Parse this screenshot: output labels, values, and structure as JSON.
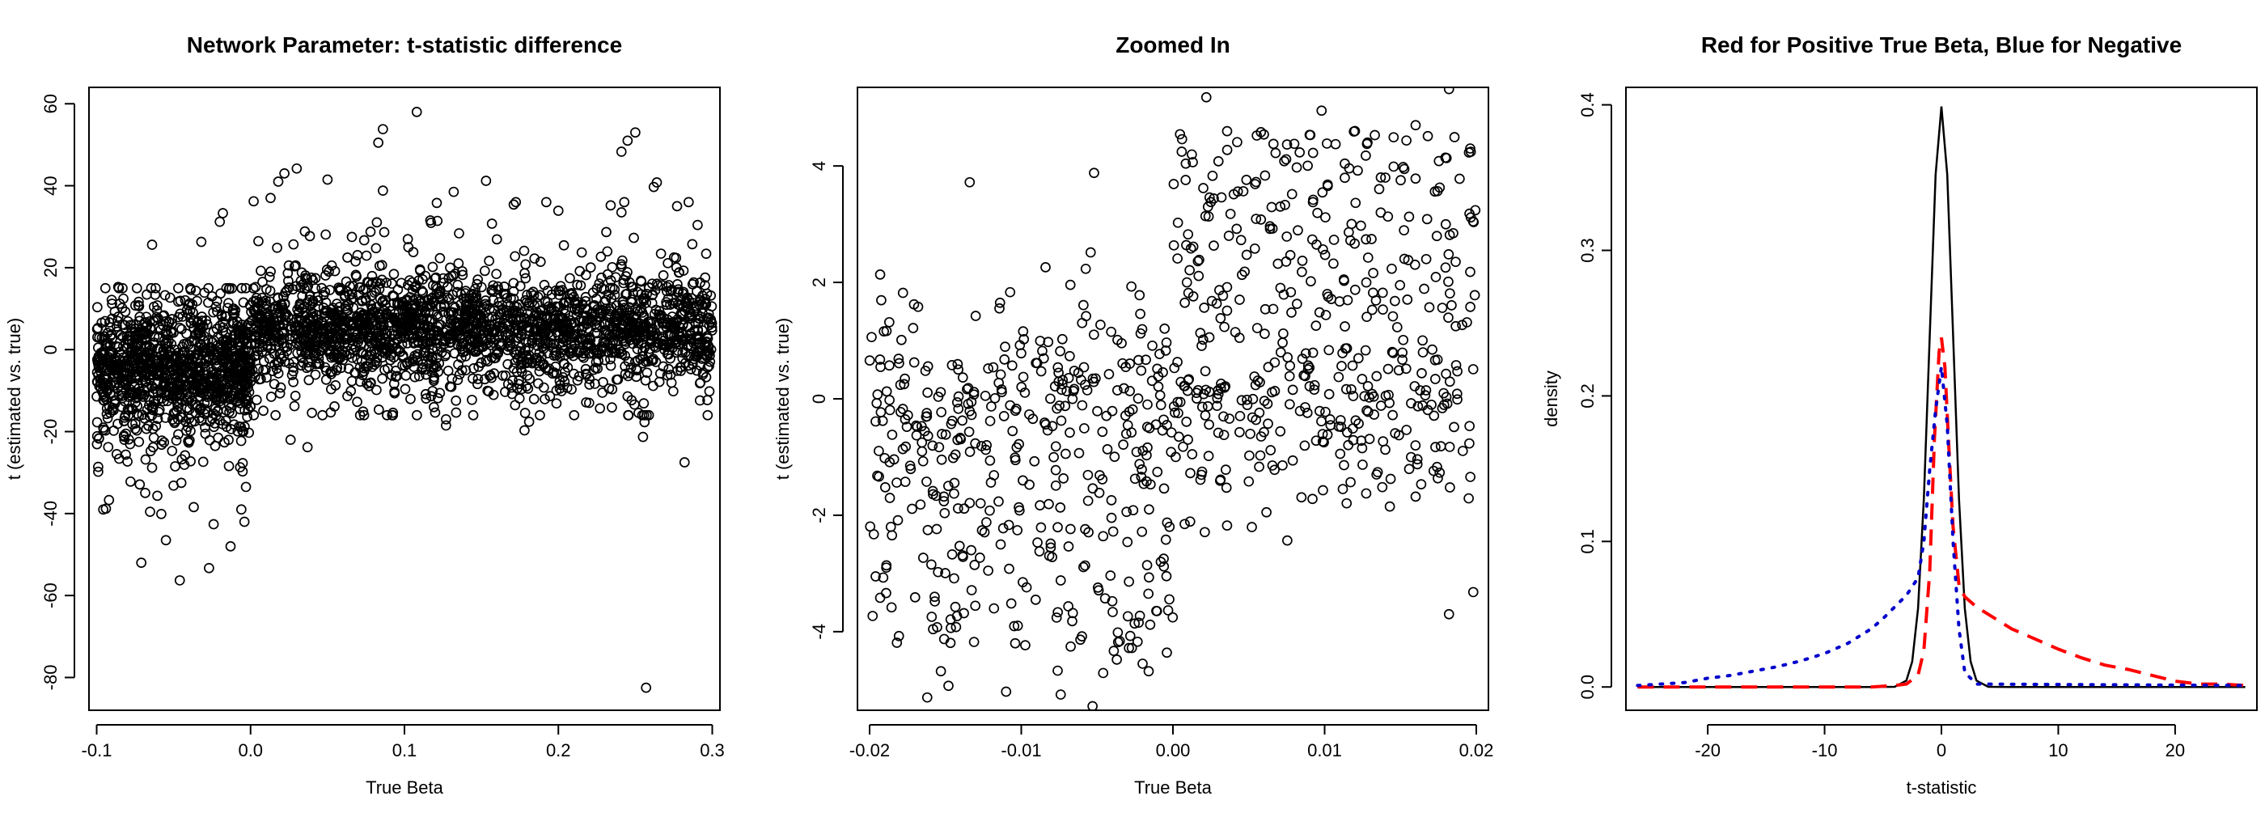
{
  "chart_data": [
    {
      "type": "scatter",
      "title": "Network Parameter: t-statistic difference",
      "xlabel": "True Beta",
      "ylabel": "t (estimated vs. true)",
      "xlim": [
        -0.105,
        0.305
      ],
      "ylim": [
        -88,
        64
      ],
      "xticks": [
        -0.1,
        0.0,
        0.1,
        0.2,
        0.3
      ],
      "xtick_labels": [
        "-0.1",
        "0.0",
        "0.1",
        "0.2",
        "0.3"
      ],
      "yticks": [
        -80,
        -60,
        -40,
        -20,
        0,
        20,
        40,
        60
      ],
      "ytick_labels": [
        "-80",
        "-60",
        "-40",
        "-20",
        "0",
        "20",
        "40",
        "60"
      ],
      "marker": "open-circle",
      "color": "#000000",
      "points": [
        [
          0.108,
          58.0
        ],
        [
          0.086,
          53.8
        ],
        [
          0.083,
          50.5
        ],
        [
          0.241,
          48.3
        ],
        [
          0.245,
          51.0
        ],
        [
          0.25,
          53.0
        ],
        [
          0.03,
          44.2
        ],
        [
          0.022,
          43.0
        ],
        [
          0.018,
          41.0
        ],
        [
          0.05,
          41.5
        ],
        [
          0.262,
          39.7
        ],
        [
          0.264,
          40.8
        ],
        [
          0.153,
          41.2
        ],
        [
          0.013,
          37.0
        ],
        [
          0.234,
          35.2
        ],
        [
          0.002,
          36.2
        ],
        [
          0.086,
          38.8
        ],
        [
          0.132,
          38.5
        ],
        [
          0.121,
          35.8
        ],
        [
          0.171,
          35.4
        ],
        [
          0.2,
          33.9
        ],
        [
          0.241,
          33.5
        ],
        [
          -0.018,
          33.3
        ],
        [
          -0.02,
          31.2
        ],
        [
          -0.032,
          26.3
        ],
        [
          -0.064,
          25.6
        ],
        [
          -0.086,
          15.3
        ],
        [
          -0.062,
          13.4
        ],
        [
          -0.03,
          13.9
        ],
        [
          -0.09,
          11.2
        ],
        [
          0.257,
          -82.5
        ],
        [
          0.255,
          -21.3
        ],
        [
          0.282,
          -27.5
        ],
        [
          0.256,
          -17.7
        ],
        [
          0.127,
          -18.5
        ],
        [
          0.127,
          -17.0
        ],
        [
          0.037,
          -23.8
        ],
        [
          0.026,
          -22.0
        ],
        [
          -0.046,
          -56.3
        ],
        [
          -0.071,
          -52.0
        ],
        [
          -0.027,
          -53.3
        ],
        [
          -0.013,
          -48.0
        ],
        [
          -0.024,
          -42.6
        ],
        [
          -0.006,
          -39.0
        ],
        [
          -0.004,
          -42.0
        ],
        [
          -0.055,
          -46.5
        ],
        [
          -0.058,
          -40.1
        ],
        [
          -0.099,
          -29.8
        ],
        [
          -0.099,
          -28.6
        ],
        [
          -0.078,
          -32.2
        ],
        [
          -0.072,
          -32.9
        ],
        [
          -0.045,
          -32.5
        ],
        [
          -0.094,
          -38.8
        ],
        [
          -0.092,
          -36.7
        ],
        [
          -0.08,
          -27.3
        ],
        [
          -0.064,
          -28.8
        ],
        [
          -0.043,
          -28.1
        ],
        [
          -0.082,
          -22.0
        ],
        [
          -0.087,
          -25.5
        ],
        [
          -0.003,
          -33.5
        ],
        [
          0.178,
          -19.7
        ],
        [
          0.181,
          -17.6
        ],
        [
          0.292,
          -12.4
        ],
        [
          0.292,
          -8.2
        ],
        [
          0.22,
          -13.0
        ],
        [
          0.245,
          -11.4
        ]
      ],
      "dense_band_neg": {
        "x_range": [
          -0.1,
          0.0
        ],
        "center": -5,
        "spread": 9
      },
      "dense_band_pos": {
        "x_range": [
          0.0,
          0.3
        ],
        "center": 5,
        "spread": 8
      }
    },
    {
      "type": "scatter",
      "title": "Zoomed In",
      "xlabel": "True Beta",
      "ylabel": "t (estimated vs. true)",
      "xlim": [
        -0.0208,
        0.0208
      ],
      "ylim": [
        -5.35,
        5.35
      ],
      "xticks": [
        -0.02,
        -0.01,
        0.0,
        0.01,
        0.02
      ],
      "xtick_labels": [
        "-0.02",
        "-0.01",
        "0.00",
        "0.01",
        "0.02"
      ],
      "yticks": [
        -4,
        -2,
        0,
        2,
        4
      ],
      "ytick_labels": [
        "-4",
        "-2",
        "0",
        "2",
        "4"
      ],
      "marker": "open-circle",
      "color": "#000000",
      "points": [
        [
          -0.0134,
          3.72
        ],
        [
          -0.0052,
          3.88
        ],
        [
          -0.0178,
          1.82
        ],
        [
          -0.0114,
          1.65
        ],
        [
          -0.0168,
          1.58
        ],
        [
          -0.0084,
          2.26
        ],
        [
          -0.0022,
          1.78
        ],
        [
          0.002,
          3.62
        ],
        [
          0.0025,
          3.38
        ],
        [
          0.003,
          4.08
        ],
        [
          0.0006,
          4.46
        ],
        [
          0.0022,
          5.18
        ],
        [
          0.0058,
          4.58
        ],
        [
          0.008,
          4.38
        ],
        [
          0.0098,
          4.95
        ],
        [
          0.012,
          4.6
        ],
        [
          0.014,
          3.8
        ],
        [
          0.016,
          4.7
        ],
        [
          0.0182,
          5.32
        ],
        [
          0.0196,
          4.3
        ],
        [
          0.0102,
          3.68
        ],
        [
          0.0137,
          3.2
        ],
        [
          0.0189,
          3.78
        ],
        [
          0.0058,
          3.08
        ],
        [
          0.0064,
          2.92
        ],
        [
          0.0003,
          2.41
        ],
        [
          0.0011,
          2.21
        ],
        [
          0.0054,
          2.58
        ],
        [
          0.0085,
          2.18
        ],
        [
          0.0117,
          2.72
        ],
        [
          0.0167,
          2.4
        ],
        [
          0.0196,
          2.18
        ],
        [
          0.0199,
          1.78
        ],
        [
          0.0042,
          2.92
        ],
        [
          0.0032,
          3.46
        ],
        [
          -0.011,
          -5.03
        ],
        [
          -0.0076,
          -4.67
        ],
        [
          -0.0074,
          -5.08
        ],
        [
          -0.0046,
          -4.71
        ],
        [
          -0.0037,
          -4.48
        ],
        [
          -0.0162,
          -5.13
        ],
        [
          -0.0148,
          -4.93
        ],
        [
          -0.0153,
          -4.68
        ],
        [
          -0.0182,
          -4.19
        ],
        [
          -0.0198,
          -3.73
        ],
        [
          -0.0053,
          -5.28
        ],
        [
          -0.0016,
          -4.68
        ],
        [
          -0.0143,
          -3.92
        ],
        [
          -0.0104,
          -4.2
        ],
        [
          -0.0118,
          -3.6
        ],
        [
          -0.0066,
          -3.68
        ],
        [
          -0.006,
          -4.08
        ],
        [
          -0.0039,
          -4.33
        ],
        [
          -0.0029,
          -4.28
        ],
        [
          -0.002,
          -4.55
        ],
        [
          -0.0004,
          -4.36
        ],
        [
          -0.0015,
          -3.88
        ],
        [
          -0.0099,
          -3.15
        ],
        [
          -0.0108,
          -2.92
        ],
        [
          -0.0074,
          -3.12
        ],
        [
          -0.0059,
          -2.89
        ],
        [
          -0.0049,
          -3.29
        ],
        [
          -0.0029,
          -3.14
        ],
        [
          -0.0006,
          -2.88
        ],
        [
          -0.0008,
          -2.8
        ],
        [
          -0.0157,
          -3.48
        ],
        [
          -0.017,
          -3.41
        ],
        [
          -0.0189,
          -2.9
        ],
        [
          -0.0196,
          -3.05
        ],
        [
          -0.0133,
          -2.6
        ],
        [
          -0.0087,
          -2.21
        ],
        [
          -0.0046,
          -2.36
        ],
        [
          -0.003,
          -2.46
        ],
        [
          0.0021,
          -2.29
        ],
        [
          0.005,
          -1.42
        ],
        [
          -0.0123,
          -2.12
        ],
        [
          -0.0186,
          -2.2
        ],
        [
          -0.0172,
          -1.89
        ],
        [
          -0.0151,
          -1.68
        ],
        [
          -0.0134,
          -1.79
        ],
        [
          0.0092,
          -1.72
        ],
        [
          0.0112,
          -1.55
        ],
        [
          0.0143,
          -1.85
        ],
        [
          0.016,
          -1.68
        ],
        [
          0.0195,
          -1.71
        ],
        [
          0.0182,
          -3.7
        ],
        [
          0.0198,
          -3.32
        ],
        [
          0.0135,
          -1.26
        ],
        [
          0.0067,
          -1.22
        ],
        [
          0.0079,
          -1.06
        ],
        [
          -0.0051,
          0.35
        ],
        [
          -0.004,
          -0.21
        ],
        [
          0.0024,
          0.12
        ],
        [
          0.0057,
          -0.24
        ],
        [
          0.0103,
          0.08
        ]
      ],
      "dense_band": {
        "x_range": [
          -0.02,
          0.02
        ],
        "center": 0,
        "spread": 0.9
      }
    },
    {
      "type": "line",
      "title": "Red for Positive True Beta, Blue for Negative",
      "xlabel": "t-statistic",
      "ylabel": "density",
      "xlim": [
        -27,
        27
      ],
      "ylim": [
        -0.016,
        0.412
      ],
      "xticks": [
        -20,
        -10,
        0,
        10,
        20
      ],
      "xtick_labels": [
        "-20",
        "-10",
        "0",
        "10",
        "20"
      ],
      "yticks": [
        0.0,
        0.1,
        0.2,
        0.3,
        0.4
      ],
      "ytick_labels": [
        "0.0",
        "0.1",
        "0.2",
        "0.3",
        "0.4"
      ],
      "series": [
        {
          "color": "#000000",
          "style": "solid",
          "x": [
            -26,
            -6,
            -4,
            -3,
            -2.5,
            -2,
            -1.5,
            -1,
            -0.5,
            0,
            0.5,
            1,
            1.5,
            2,
            2.5,
            3,
            4,
            6,
            26
          ],
          "y": [
            0,
            0,
            0.0001,
            0.0044,
            0.0175,
            0.054,
            0.1295,
            0.242,
            0.352,
            0.3989,
            0.352,
            0.242,
            0.1295,
            0.054,
            0.0175,
            0.0044,
            0.0001,
            0,
            0
          ]
        },
        {
          "color": "#ff0000",
          "style": "dashed",
          "x": [
            -26,
            -6,
            -4,
            -3,
            -2,
            -1.5,
            -1,
            -0.6,
            -0.2,
            0,
            0.3,
            0.6,
            1,
            1.5,
            2,
            3,
            4,
            6,
            8,
            10,
            12,
            14,
            16,
            18,
            20,
            22,
            24,
            26
          ],
          "y": [
            0,
            0,
            0.001,
            0.002,
            0.008,
            0.025,
            0.08,
            0.17,
            0.23,
            0.24,
            0.22,
            0.17,
            0.11,
            0.07,
            0.062,
            0.055,
            0.05,
            0.04,
            0.033,
            0.026,
            0.02,
            0.015,
            0.012,
            0.008,
            0.004,
            0.002,
            0.002,
            0.001
          ]
        },
        {
          "color": "#0000cc",
          "style": "dotted",
          "x": [
            -26,
            -24,
            -22,
            -20,
            -18,
            -16,
            -14,
            -12,
            -10,
            -8,
            -6,
            -5,
            -4,
            -3,
            -2,
            -1.5,
            -1,
            -0.5,
            0,
            0.5,
            1,
            1.5,
            2,
            3,
            26
          ],
          "y": [
            0.001,
            0.002,
            0.003,
            0.006,
            0.008,
            0.011,
            0.014,
            0.018,
            0.023,
            0.03,
            0.04,
            0.047,
            0.055,
            0.063,
            0.075,
            0.1,
            0.15,
            0.19,
            0.22,
            0.18,
            0.1,
            0.04,
            0.01,
            0.002,
            0.001
          ]
        }
      ]
    }
  ]
}
